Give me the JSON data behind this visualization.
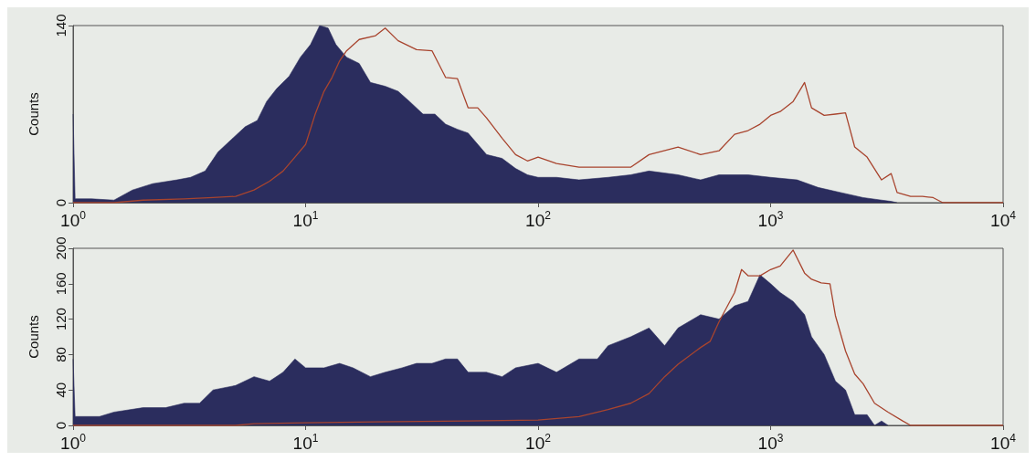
{
  "chart_data": [
    {
      "type": "area",
      "ylabel": "Counts",
      "xlim": [
        1,
        10000
      ],
      "ylim": [
        0,
        140
      ],
      "log": "x",
      "grid": false,
      "xticks": [
        {
          "value": 1,
          "label": "10$^{0}$"
        },
        {
          "value": 10,
          "label": "10$^{1}$"
        },
        {
          "value": 100,
          "label": "10$^{2}$"
        },
        {
          "value": 1000,
          "label": "10$^{3}$"
        },
        {
          "value": 10000,
          "label": "10$^{4}$"
        }
      ],
      "yticks": [
        0,
        140
      ],
      "series": [
        {
          "color": "#2b2d5e",
          "x": [
            1,
            1.02,
            1.2,
            1.5,
            1.8,
            2.2,
            2.8,
            3.2,
            3.7,
            4.2,
            4.8,
            5.5,
            6.2,
            6.8,
            7.5,
            8.5,
            9.5,
            10.5,
            11.5,
            12.5,
            13.5,
            15,
            17,
            19,
            22,
            25,
            28,
            32,
            36,
            40,
            45,
            50,
            60,
            70,
            80,
            90,
            100,
            120,
            150,
            200,
            250,
            300,
            400,
            500,
            600,
            800,
            1000,
            1300,
            1600,
            2000,
            2500,
            3000,
            3300,
            3500
          ],
          "values": [
            70,
            3,
            3,
            2,
            10,
            15,
            18,
            20,
            25,
            40,
            50,
            60,
            65,
            80,
            90,
            100,
            115,
            125,
            140,
            138,
            125,
            115,
            110,
            95,
            92,
            88,
            80,
            70,
            70,
            62,
            58,
            55,
            38,
            35,
            27,
            22,
            20,
            20,
            18,
            20,
            22,
            25,
            22,
            18,
            22,
            22,
            20,
            18,
            12,
            8,
            4,
            2,
            1,
            0
          ]
        },
        {
          "type": "line",
          "color": "#a8442e",
          "x": [
            1,
            1.5,
            2,
            3,
            4,
            5,
            6,
            7,
            8,
            9,
            10,
            11,
            12,
            13,
            14,
            15,
            17,
            20,
            22,
            25,
            30,
            35,
            40,
            45,
            50,
            55,
            60,
            70,
            80,
            90,
            100,
            120,
            150,
            200,
            250,
            300,
            400,
            500,
            600,
            700,
            800,
            900,
            1000,
            1100,
            1250,
            1400,
            1500,
            1700,
            1900,
            2100,
            2300,
            2600,
            3000,
            3300,
            3500,
            4000,
            4500,
            5000,
            5500,
            10000
          ],
          "values": [
            0,
            0,
            2,
            3,
            4,
            5,
            10,
            17,
            25,
            36,
            46,
            70,
            88,
            99,
            112,
            120,
            129,
            132,
            138,
            128,
            121,
            120,
            99,
            98,
            75,
            75,
            67,
            51,
            38,
            33,
            36,
            31,
            28,
            28,
            28,
            38,
            44,
            38,
            41,
            54,
            57,
            62,
            69,
            72,
            80,
            95,
            75,
            69,
            70,
            71,
            44,
            36,
            18,
            23,
            8,
            5,
            5,
            4,
            0,
            0
          ]
        }
      ]
    },
    {
      "type": "area",
      "ylabel": "Counts",
      "xlim": [
        1,
        10000
      ],
      "ylim": [
        0,
        200
      ],
      "log": "x",
      "grid": false,
      "xticks": [
        {
          "value": 1,
          "label": "10$^{0}$"
        },
        {
          "value": 10,
          "label": "10$^{1}$"
        },
        {
          "value": 100,
          "label": "10$^{2}$"
        },
        {
          "value": 1000,
          "label": "10$^{3}$"
        },
        {
          "value": 10000,
          "label": "10$^{4}$"
        }
      ],
      "yticks": [
        0,
        40,
        80,
        120,
        160,
        200
      ],
      "series": [
        {
          "color": "#2b2d5e",
          "x": [
            1,
            1.02,
            1.3,
            1.5,
            2,
            2.5,
            3,
            3.5,
            4,
            5,
            6,
            7,
            8,
            9,
            10,
            12,
            14,
            16,
            19,
            22,
            26,
            30,
            35,
            40,
            45,
            50,
            60,
            70,
            80,
            100,
            120,
            150,
            180,
            200,
            250,
            300,
            350,
            400,
            500,
            600,
            700,
            800,
            900,
            1000,
            1100,
            1250,
            1400,
            1500,
            1700,
            1900,
            2100,
            2300,
            2600,
            2800,
            3000,
            3200
          ],
          "values": [
            75,
            10,
            10,
            15,
            20,
            20,
            25,
            25,
            40,
            45,
            55,
            50,
            60,
            75,
            65,
            65,
            70,
            65,
            55,
            60,
            65,
            70,
            70,
            75,
            75,
            60,
            60,
            55,
            65,
            70,
            60,
            75,
            75,
            90,
            100,
            110,
            90,
            110,
            125,
            120,
            135,
            140,
            170,
            160,
            150,
            140,
            125,
            100,
            80,
            50,
            40,
            12,
            12,
            0,
            5,
            0
          ]
        },
        {
          "type": "line",
          "color": "#a8442e",
          "x": [
            1,
            5,
            6,
            10,
            20,
            50,
            100,
            150,
            200,
            250,
            300,
            350,
            400,
            500,
            550,
            600,
            700,
            750,
            800,
            900,
            1000,
            1100,
            1250,
            1400,
            1500,
            1650,
            1800,
            1900,
            2100,
            2300,
            2500,
            2800,
            3200,
            3700,
            4000,
            10000
          ],
          "values": [
            0,
            0,
            2,
            3,
            4,
            5,
            6,
            10,
            18,
            25,
            36,
            55,
            69,
            88,
            95,
            117,
            150,
            176,
            169,
            169,
            176,
            180,
            198,
            172,
            165,
            161,
            160,
            124,
            84,
            58,
            47,
            25,
            15,
            5,
            0,
            0
          ]
        }
      ]
    }
  ]
}
